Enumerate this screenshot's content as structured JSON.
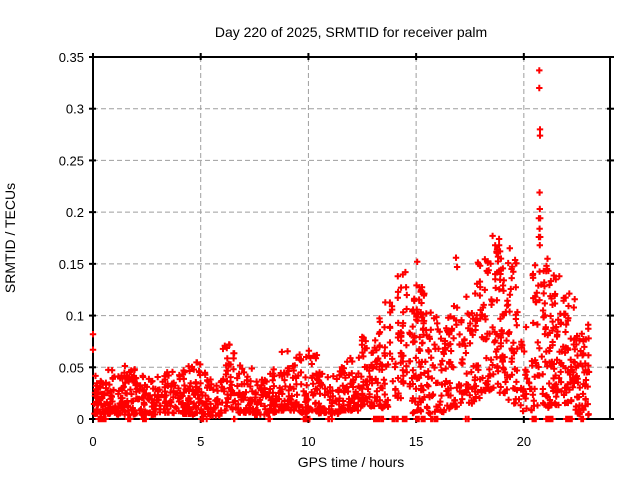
{
  "chart_data": {
    "type": "scatter",
    "title": "Day 220 of 2025, SRMTID for receiver palm",
    "xlabel": "GPS time / hours",
    "ylabel": "SRMTID / TECUs",
    "xlim": [
      0,
      24
    ],
    "ylim": [
      0,
      0.35
    ],
    "xticks": [
      0,
      5,
      10,
      15,
      20
    ],
    "xtick_labels": [
      "0",
      "5",
      "10",
      "15",
      "20"
    ],
    "yticks": [
      0,
      0.05,
      0.1,
      0.15,
      0.2,
      0.25,
      0.3,
      0.35
    ],
    "ytick_labels": [
      "0",
      "0.05",
      "0.1",
      "0.15",
      "0.2",
      "0.25",
      "0.3",
      "0.35"
    ],
    "grid": true,
    "legend": "none",
    "marker": "plus",
    "seed": 42,
    "outlier_points": [
      [
        0,
        0.082
      ],
      [
        0,
        0.067
      ],
      [
        6.32,
        0.072
      ],
      [
        14.15,
        0.138
      ],
      [
        14.5,
        0.142
      ],
      [
        15.05,
        0.152
      ],
      [
        16.85,
        0.156
      ],
      [
        16.9,
        0.147
      ],
      [
        18.55,
        0.177
      ],
      [
        18.85,
        0.174
      ],
      [
        18.85,
        0.168
      ],
      [
        18.9,
        0.162
      ],
      [
        18.8,
        0.157
      ],
      [
        19.35,
        0.165
      ],
      [
        20.72,
        0.337
      ],
      [
        20.72,
        0.32
      ],
      [
        20.75,
        0.28
      ],
      [
        20.75,
        0.274
      ],
      [
        20.73,
        0.219
      ],
      [
        20.74,
        0.203
      ],
      [
        20.7,
        0.194
      ],
      [
        20.76,
        0.194
      ],
      [
        20.73,
        0.184
      ],
      [
        20.7,
        0.176
      ],
      [
        20.76,
        0.176
      ],
      [
        20.74,
        0.168
      ],
      [
        21.1,
        0.155
      ],
      [
        21.05,
        0.148
      ]
    ],
    "zero_value_clusters": [
      [
        0.2,
        0.6,
        12
      ],
      [
        1.55,
        1.75,
        5
      ],
      [
        2.3,
        2.5,
        6
      ],
      [
        5.0,
        5.3,
        4
      ],
      [
        6.5,
        6.6,
        2
      ],
      [
        8.0,
        8.3,
        3
      ],
      [
        9.6,
        10.1,
        5
      ],
      [
        10.9,
        11.1,
        3
      ],
      [
        13.0,
        13.5,
        14
      ],
      [
        13.9,
        14.2,
        8
      ],
      [
        14.3,
        14.6,
        8
      ],
      [
        15.0,
        15.45,
        10
      ],
      [
        15.6,
        16.0,
        6
      ],
      [
        17.3,
        17.5,
        3
      ],
      [
        20.4,
        20.6,
        5
      ],
      [
        21.0,
        21.35,
        9
      ],
      [
        21.9,
        22.3,
        7
      ],
      [
        22.6,
        22.8,
        4
      ]
    ],
    "density_bands": [
      [
        0.05,
        0.6,
        45,
        0.005,
        0.042,
        1.8
      ],
      [
        0.6,
        1.1,
        40,
        0.005,
        0.048,
        1.8
      ],
      [
        1.1,
        1.6,
        40,
        0.004,
        0.052,
        1.8
      ],
      [
        1.6,
        2.2,
        45,
        0.004,
        0.05,
        1.8
      ],
      [
        2.2,
        3.0,
        55,
        0.004,
        0.042,
        1.8
      ],
      [
        3.0,
        3.7,
        45,
        0.006,
        0.047,
        1.8
      ],
      [
        3.7,
        4.5,
        55,
        0.005,
        0.056,
        1.8
      ],
      [
        4.5,
        5.3,
        55,
        0.004,
        0.055,
        1.8
      ],
      [
        5.3,
        6.0,
        45,
        0.003,
        0.04,
        1.8
      ],
      [
        6.0,
        6.6,
        40,
        0.008,
        0.073,
        1.6
      ],
      [
        6.6,
        7.4,
        50,
        0.006,
        0.052,
        1.8
      ],
      [
        7.4,
        8.1,
        45,
        0.004,
        0.038,
        1.8
      ],
      [
        8.1,
        8.7,
        40,
        0.006,
        0.05,
        1.8
      ],
      [
        8.7,
        9.5,
        55,
        0.008,
        0.066,
        1.8
      ],
      [
        9.5,
        10.4,
        60,
        0.006,
        0.066,
        1.9
      ],
      [
        10.4,
        11.4,
        60,
        0.005,
        0.046,
        1.8
      ],
      [
        11.4,
        12.4,
        65,
        0.008,
        0.06,
        1.7
      ],
      [
        12.4,
        13.2,
        60,
        0.012,
        0.082,
        1.5
      ],
      [
        13.2,
        13.7,
        25,
        0.008,
        0.06,
        1.5
      ],
      [
        13.3,
        13.8,
        18,
        0.055,
        0.115,
        1.0,
        3
      ],
      [
        13.9,
        14.3,
        30,
        0.02,
        0.135,
        1.0,
        4
      ],
      [
        14.4,
        14.7,
        22,
        0.03,
        0.142,
        1.0,
        3
      ],
      [
        14.8,
        15.4,
        45,
        0.05,
        0.13,
        1.0
      ],
      [
        14.8,
        15.4,
        30,
        0.005,
        0.05,
        1.2
      ],
      [
        15.4,
        16.3,
        55,
        0.005,
        0.105,
        1.4
      ],
      [
        16.3,
        17.1,
        55,
        0.01,
        0.11,
        1.4
      ],
      [
        17.1,
        17.7,
        40,
        0.015,
        0.12,
        1.4
      ],
      [
        17.7,
        18.5,
        65,
        0.02,
        0.155,
        1.3
      ],
      [
        18.5,
        19.2,
        65,
        0.025,
        0.172,
        1.3
      ],
      [
        19.2,
        19.7,
        45,
        0.015,
        0.16,
        1.4
      ],
      [
        19.7,
        20.4,
        30,
        0.005,
        0.1,
        1.6
      ],
      [
        20.4,
        20.9,
        35,
        0.01,
        0.155,
        1.3
      ],
      [
        20.9,
        21.7,
        80,
        0.01,
        0.15,
        1.4
      ],
      [
        21.7,
        22.4,
        60,
        0.015,
        0.125,
        1.4
      ],
      [
        22.4,
        23.05,
        60,
        0.004,
        0.092,
        1.5
      ]
    ]
  },
  "colors": {
    "marker": "#ff0000",
    "grid": "#9e9e9e",
    "border": "#000000",
    "text": "#000000",
    "background": "#ffffff"
  }
}
